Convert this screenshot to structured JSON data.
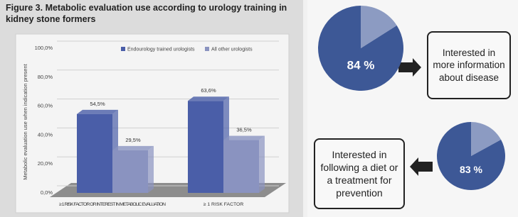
{
  "chart_data": [
    {
      "type": "bar",
      "title": "Figure 3. Metabolic evaluation use according to urology training in kidney stone formers",
      "y_label": "Metabolic evaluation use when indication present",
      "categories": [
        "≥ 1 RISK FACTOR OR INTEREST IN METABOLIC EVALUATION",
        "≥ 1 RISK FACTOR"
      ],
      "series": [
        {
          "name": "Endourology trained urologists",
          "color": "#4a5ea8",
          "values": [
            54.5,
            63.6
          ],
          "value_labels": [
            "54,5%",
            "63,6%"
          ]
        },
        {
          "name": "All other urologists",
          "color": "#8a93c0",
          "values": [
            29.5,
            36.5
          ],
          "value_labels": [
            "29,5%",
            "36,5%"
          ]
        }
      ],
      "ylim": [
        0,
        100
      ],
      "yticks": [
        {
          "value": 0,
          "label": "0,0%"
        },
        {
          "value": 20,
          "label": "20,0%"
        },
        {
          "value": 40,
          "label": "40,0%"
        },
        {
          "value": 60,
          "label": "60,0%"
        },
        {
          "value": 80,
          "label": "80,0%"
        },
        {
          "value": 100,
          "label": "100,0%"
        }
      ],
      "grid": true,
      "legend": "top"
    },
    {
      "type": "pie",
      "values": [
        84,
        16
      ],
      "colors": [
        "#3d5896",
        "#8c9bc2"
      ],
      "label": "84 %",
      "annotation": "Interested in more information about disease"
    },
    {
      "type": "pie",
      "values": [
        83,
        17
      ],
      "colors": [
        "#3d5896",
        "#8c9bc2"
      ],
      "label": "83 %",
      "annotation": "Interested in following a diet or a treatment for prevention"
    }
  ]
}
